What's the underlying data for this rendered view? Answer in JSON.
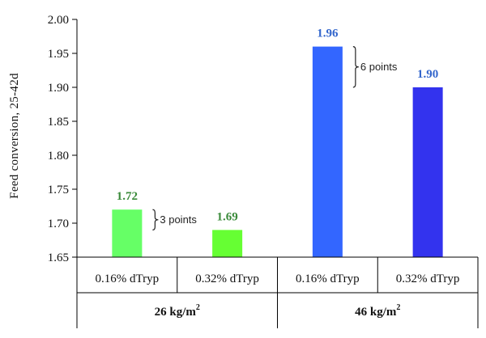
{
  "chart_data": {
    "type": "bar",
    "ylabel": "Feed conversion, 25-42d",
    "ylim": [
      1.65,
      2.0
    ],
    "yticks": [
      "1.65",
      "1.70",
      "1.75",
      "1.80",
      "1.85",
      "1.90",
      "1.95",
      "2.00"
    ],
    "categories": [
      "0.16% dTryp",
      "0.32% dTryp",
      "0.16% dTryp",
      "0.32% dTryp"
    ],
    "values": [
      1.72,
      1.69,
      1.96,
      1.9
    ],
    "data_labels": [
      "1.72",
      "1.69",
      "1.96",
      "1.90"
    ],
    "groups": [
      {
        "label": "26 kg/m",
        "superscript": "2",
        "categories": [
          0,
          1
        ]
      },
      {
        "label": "46 kg/m",
        "superscript": "2",
        "categories": [
          2,
          3
        ]
      }
    ],
    "bar_colors": [
      "#66ff66",
      "#66ff33",
      "#3366ff",
      "#3333ee"
    ],
    "label_colors": [
      "#3a8a3a",
      "#3a8a3a",
      "#3366cc",
      "#3366cc"
    ],
    "annotations": [
      {
        "text": "3 points",
        "between": [
          1.72,
          1.69
        ],
        "near_category": 0
      },
      {
        "text": "6 points",
        "between": [
          1.96,
          1.9
        ],
        "near_category": 2
      }
    ],
    "grid": false,
    "legend": "none"
  }
}
